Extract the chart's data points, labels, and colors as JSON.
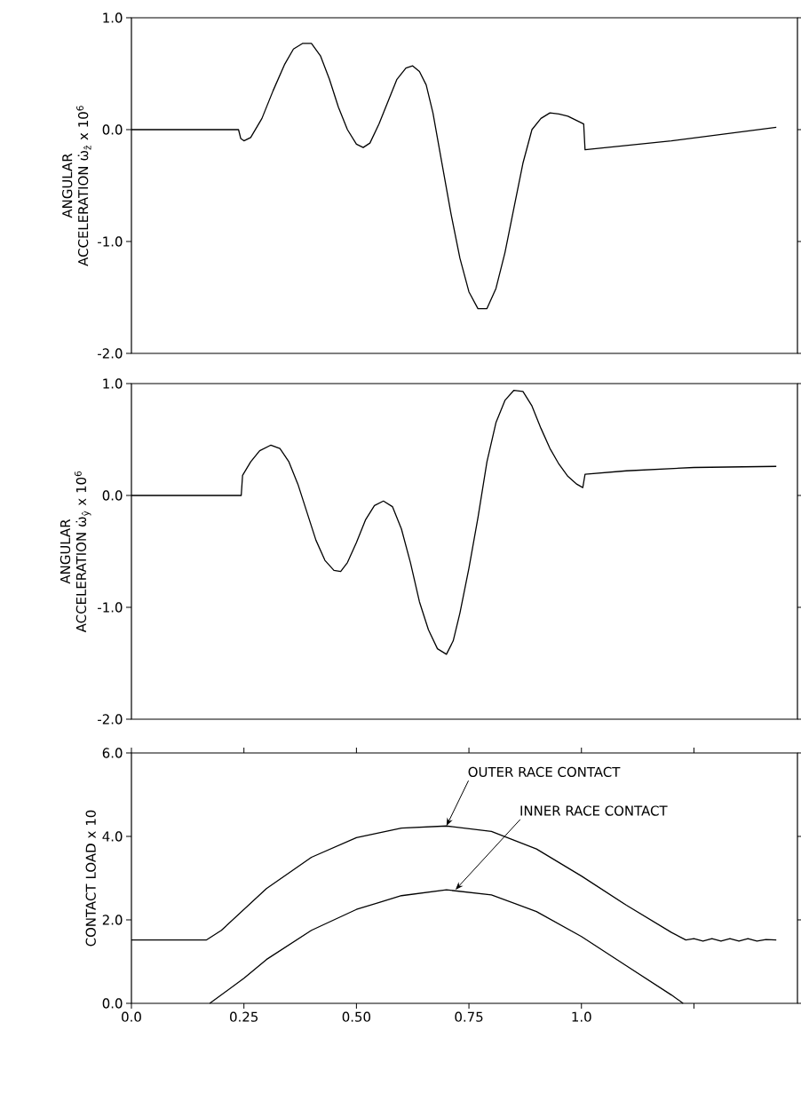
{
  "chart_data": [
    {
      "type": "line",
      "ylabel": "ANGULAR ACCELERATION ω̇$_{ẑ}$ x 10$^{6}$",
      "xlim": [
        0,
        1.48
      ],
      "ylim": [
        -2.0,
        1.0
      ],
      "yticks": [
        {
          "value": 1.0,
          "label": "1.0"
        },
        {
          "value": 0.0,
          "label": "0.0"
        },
        {
          "value": -1.0,
          "label": "-1.0"
        },
        {
          "value": -2.0,
          "label": "-2.0"
        }
      ],
      "tick_labels": "y",
      "series": [
        {
          "color": "#000000",
          "x": [
            0,
            0.238,
            0.243,
            0.25,
            0.265,
            0.29,
            0.315,
            0.34,
            0.36,
            0.38,
            0.4,
            0.42,
            0.44,
            0.46,
            0.48,
            0.5,
            0.515,
            0.53,
            0.55,
            0.57,
            0.59,
            0.61,
            0.625,
            0.64,
            0.655,
            0.67,
            0.69,
            0.71,
            0.73,
            0.75,
            0.77,
            0.79,
            0.81,
            0.83,
            0.85,
            0.87,
            0.89,
            0.91,
            0.93,
            0.95,
            0.97,
            0.99,
            1.005,
            1.008,
            1.2,
            1.433
          ],
          "values": [
            0,
            0,
            -0.08,
            -0.1,
            -0.07,
            0.1,
            0.35,
            0.58,
            0.72,
            0.77,
            0.77,
            0.66,
            0.45,
            0.2,
            0.0,
            -0.13,
            -0.16,
            -0.12,
            0.05,
            0.25,
            0.45,
            0.55,
            0.57,
            0.52,
            0.4,
            0.15,
            -0.3,
            -0.75,
            -1.15,
            -1.45,
            -1.6,
            -1.6,
            -1.42,
            -1.1,
            -0.7,
            -0.3,
            0.0,
            0.1,
            0.15,
            0.14,
            0.12,
            0.08,
            0.05,
            -0.18,
            -0.1,
            0.02
          ]
        }
      ]
    },
    {
      "type": "line",
      "ylabel": "ANGULAR ACCELERATION ω̇$_{ŷ}$ x 10$^{6}$",
      "xlim": [
        0,
        1.48
      ],
      "ylim": [
        -2.0,
        1.0
      ],
      "yticks": [
        {
          "value": 1.0,
          "label": "1.0"
        },
        {
          "value": 0.0,
          "label": "0.0"
        },
        {
          "value": -1.0,
          "label": "-1.0"
        },
        {
          "value": -2.0,
          "label": "-2.0"
        }
      ],
      "tick_labels": "y",
      "series": [
        {
          "color": "#000000",
          "x": [
            0,
            0.244,
            0.247,
            0.265,
            0.285,
            0.31,
            0.33,
            0.35,
            0.37,
            0.39,
            0.41,
            0.43,
            0.45,
            0.465,
            0.48,
            0.5,
            0.52,
            0.54,
            0.56,
            0.58,
            0.6,
            0.62,
            0.64,
            0.66,
            0.68,
            0.7,
            0.715,
            0.73,
            0.75,
            0.77,
            0.79,
            0.81,
            0.83,
            0.85,
            0.87,
            0.89,
            0.91,
            0.93,
            0.95,
            0.97,
            0.99,
            1.003,
            1.008,
            1.1,
            1.25,
            1.433
          ],
          "values": [
            0,
            0,
            0.18,
            0.3,
            0.4,
            0.45,
            0.42,
            0.3,
            0.1,
            -0.15,
            -0.4,
            -0.58,
            -0.67,
            -0.68,
            -0.6,
            -0.42,
            -0.22,
            -0.09,
            -0.05,
            -0.1,
            -0.3,
            -0.6,
            -0.95,
            -1.2,
            -1.37,
            -1.42,
            -1.3,
            -1.05,
            -0.65,
            -0.2,
            0.3,
            0.65,
            0.85,
            0.94,
            0.93,
            0.8,
            0.6,
            0.42,
            0.28,
            0.17,
            0.1,
            0.07,
            0.19,
            0.22,
            0.25,
            0.26
          ]
        }
      ]
    },
    {
      "type": "line",
      "ylabel": "CONTACT LOAD x 10",
      "xlim": [
        0,
        1.48
      ],
      "ylim": [
        0,
        6.0
      ],
      "xticks": [
        {
          "value": 0,
          "label": "0.0"
        },
        0.25,
        {
          "value": 0.5,
          "label": "0.50"
        },
        0.75,
        {
          "value": 1.0,
          "label": "1.0"
        },
        {
          "value": 1.25,
          "label": null
        }
      ],
      "yticks": [
        {
          "value": 0,
          "label": "0.0"
        },
        {
          "value": 2.0,
          "label": "2.0"
        },
        {
          "value": 4.0,
          "label": "4.0"
        },
        {
          "value": 6.0,
          "label": "6.0"
        }
      ],
      "series": [
        {
          "color": "#000000",
          "x": [
            0,
            0.167,
            0.2,
            0.3,
            0.4,
            0.5,
            0.6,
            0.7,
            0.8,
            0.9,
            1.0,
            1.1,
            1.2,
            1.232,
            1.25,
            1.27,
            1.29,
            1.31,
            1.33,
            1.35,
            1.37,
            1.39,
            1.41,
            1.433
          ],
          "values": [
            1.52,
            1.52,
            1.75,
            2.75,
            3.5,
            3.97,
            4.2,
            4.25,
            4.12,
            3.7,
            3.05,
            2.35,
            1.7,
            1.52,
            1.55,
            1.49,
            1.55,
            1.49,
            1.55,
            1.49,
            1.55,
            1.49,
            1.53,
            1.52
          ]
        },
        {
          "color": "#000000",
          "x": [
            0.174,
            0.25,
            0.3,
            0.4,
            0.5,
            0.6,
            0.7,
            0.8,
            0.9,
            1.0,
            1.1,
            1.2,
            1.226
          ],
          "values": [
            0,
            0.6,
            1.05,
            1.75,
            2.25,
            2.58,
            2.72,
            2.6,
            2.2,
            1.6,
            0.9,
            0.2,
            0
          ]
        }
      ],
      "annotations": [
        {
          "text": "OUTER RACE CONTACT",
          "x": 0.7,
          "y": 4.25
        },
        {
          "text": "INNER RACE CONTACT",
          "x": 0.72,
          "y": 2.72
        }
      ]
    }
  ]
}
